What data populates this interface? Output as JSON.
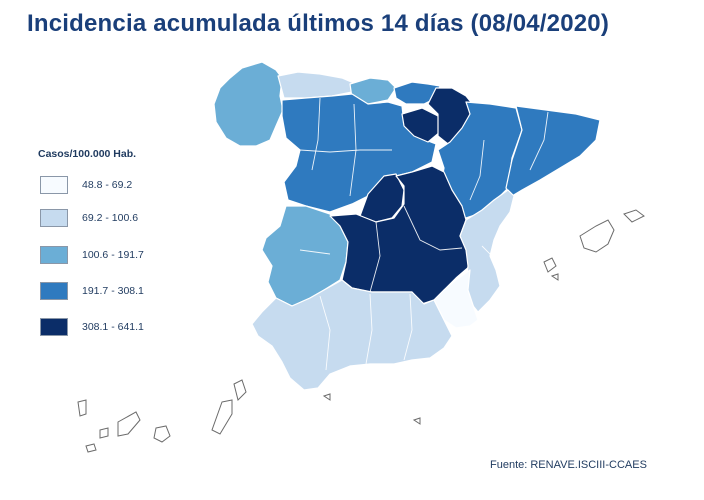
{
  "title": "Incidencia acumulada últimos 14 días (08/04/2020)",
  "legend": {
    "title": "Casos/100.000 Hab.",
    "items": [
      {
        "label": "48.8 - 69.2",
        "color": "#f7fbff"
      },
      {
        "label": "69.2 - 100.6",
        "color": "#c6dbef"
      },
      {
        "label": "100.6 - 191.7",
        "color": "#6baed6"
      },
      {
        "label": "191.7 - 308.1",
        "color": "#2f7abf"
      },
      {
        "label": "308.1 - 641.1",
        "color": "#0b2d68"
      }
    ]
  },
  "source": "Fuente: RENAVE.ISCIII-CCAES"
}
